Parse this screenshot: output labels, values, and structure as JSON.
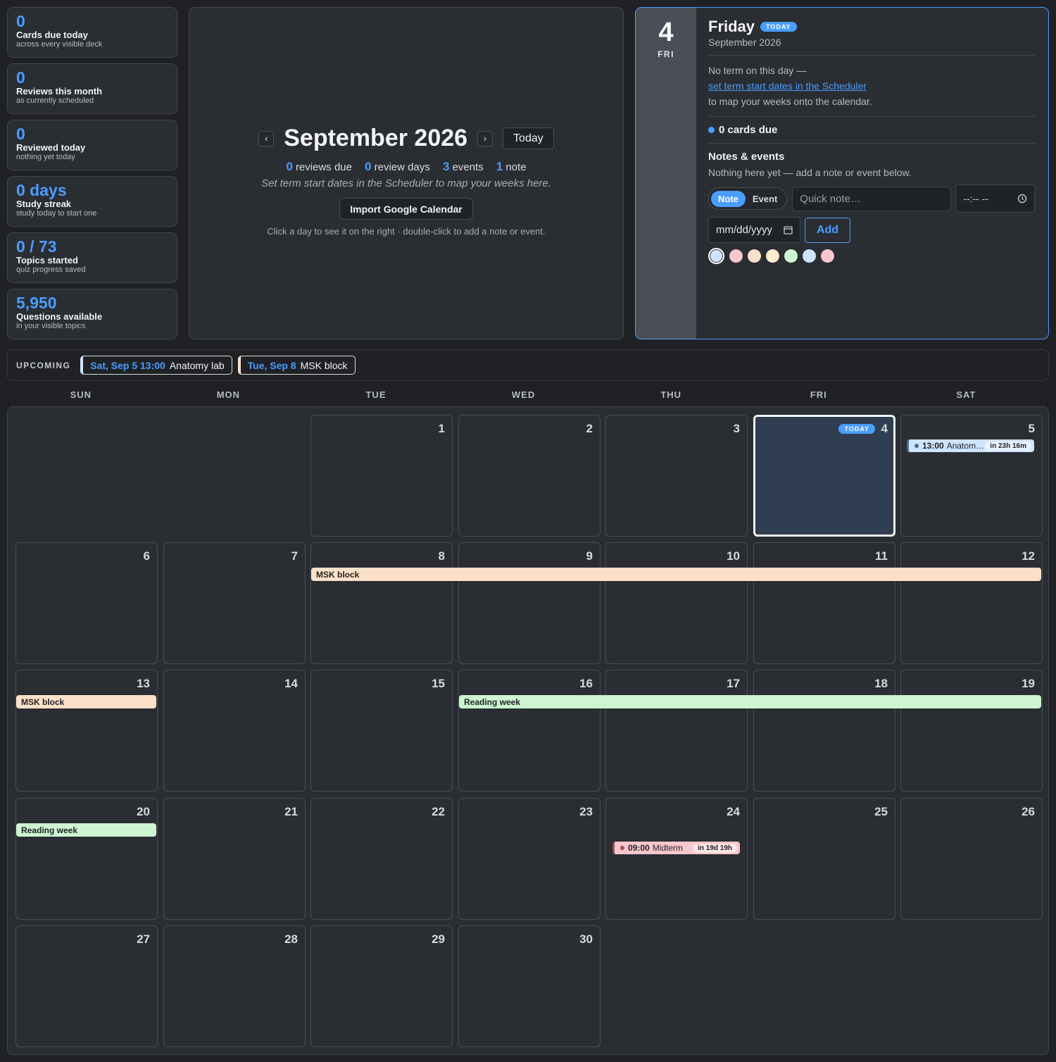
{
  "stats": [
    {
      "value": "0",
      "label": "Cards due today",
      "sub": "across every visible deck"
    },
    {
      "value": "0",
      "label": "Reviews this month",
      "sub": "as currently scheduled"
    },
    {
      "value": "0",
      "label": "Reviewed today",
      "sub": "nothing yet today"
    },
    {
      "value": "0 days",
      "label": "Study streak",
      "sub": "study today to start one"
    },
    {
      "value": "0 / 73",
      "label": "Topics started",
      "sub": "quiz progress saved"
    },
    {
      "value": "5,950",
      "label": "Questions available",
      "sub": "in your visible topics"
    }
  ],
  "header": {
    "prev_icon": "‹",
    "next_icon": "›",
    "month_title": "September 2026",
    "today_label": "Today",
    "counts": {
      "reviews_due": "0",
      "reviews_due_label": "reviews due",
      "review_days": "0",
      "review_days_label": "review days",
      "events": "3",
      "events_label": "events",
      "notes": "1",
      "notes_label": "note"
    },
    "hint": "Set term start dates in the Scheduler to map your weeks here.",
    "import_label": "Import Google Calendar",
    "hint2": "Click a day to see it on the right · double-click to add a note or event."
  },
  "day_panel": {
    "day_number": "4",
    "day_abbr": "FRI",
    "weekday": "Friday",
    "today_badge": "TODAY",
    "month_year": "September 2026",
    "no_term_text": "No term on this day —",
    "link_text": "set term start dates in the Scheduler",
    "map_text": "to map your weeks onto the calendar.",
    "cards_due": "0 cards due",
    "notes_heading": "Notes & events",
    "notes_empty": "Nothing here yet — add a note or event below.",
    "note_tab": "Note",
    "event_tab": "Event",
    "quick_placeholder": "Quick note…",
    "time_placeholder": "--:-- --",
    "date_placeholder": "mm/dd/yyyy",
    "add_label": "Add",
    "swatch_colors": [
      "#cfe4ff",
      "#f8c7cc",
      "#fde0c8",
      "#fdeccc",
      "#cdf5d1",
      "#cfe4ff",
      "#f8c7cc"
    ]
  },
  "upcoming": {
    "label": "UPCOMING",
    "items": [
      {
        "when": "Sat, Sep 5 13:00",
        "title": "Anatomy lab",
        "color": "#cfe4ff"
      },
      {
        "when": "Tue, Sep 8",
        "title": "MSK block",
        "color": "#fde0c8"
      }
    ]
  },
  "weekdays": [
    "SUN",
    "MON",
    "TUE",
    "WED",
    "THU",
    "FRI",
    "SAT"
  ],
  "calendar": {
    "today_badge": "TODAY",
    "bars": [
      {
        "label": "MSK block",
        "color": "#fde0c8"
      },
      {
        "label": "MSK block",
        "color": "#fde0c8"
      },
      {
        "label": "Reading week",
        "color": "#cdf5d1"
      },
      {
        "label": "Reading week",
        "color": "#cdf5d1"
      }
    ],
    "events": [
      {
        "time": "13:00",
        "name": "Anatomy lab",
        "countdown": "in 23h 16m",
        "color": "#cfe4ff",
        "dot": "#4a6a99"
      },
      {
        "time": "09:00",
        "name": "Midterm",
        "countdown": "in 19d 19h",
        "color": "#f8c7cc",
        "dot": "#a04c57"
      }
    ]
  }
}
